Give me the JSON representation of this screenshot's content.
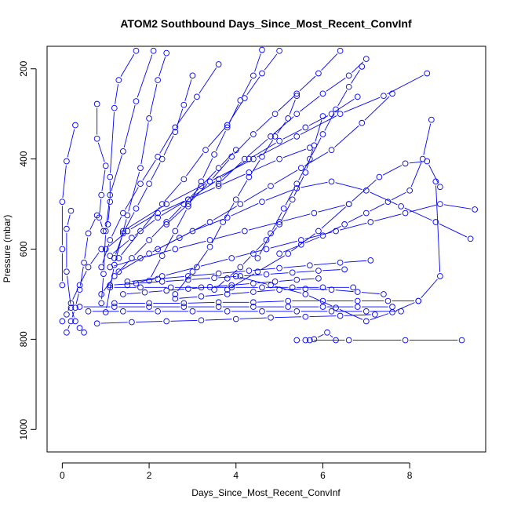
{
  "chart_data": {
    "type": "line",
    "title": "ATOM2 Southbound Days_Since_Most_Recent_ConvInf",
    "xlabel": "Days_Since_Most_Recent_ConvInf",
    "ylabel": "Pressure (mbar)",
    "xlim": [
      -0.35,
      9.75
    ],
    "ylim": [
      1050,
      150
    ],
    "y_inverted": true,
    "x_ticks": [
      0,
      2,
      4,
      6,
      8
    ],
    "y_ticks": [
      200,
      400,
      600,
      800,
      1000
    ],
    "color": "#0000ff",
    "marker": "open-circle",
    "series": [
      {
        "x": [
          0.3,
          0.1,
          0.0,
          0.0,
          0.0
        ],
        "y": [
          325,
          405,
          495,
          600,
          680
        ]
      },
      {
        "x": [
          0.8,
          0.8,
          1.0,
          0.9,
          0.85,
          0.95
        ],
        "y": [
          278,
          355,
          415,
          480,
          530,
          560
        ]
      },
      {
        "x": [
          1.7,
          1.3,
          1.2,
          1.1,
          1.1,
          1.05
        ],
        "y": [
          160,
          225,
          287,
          440,
          495,
          545
        ]
      },
      {
        "x": [
          2.1,
          1.7,
          1.4,
          1.1,
          1.0,
          0.95,
          0.9
        ],
        "y": [
          160,
          272,
          383,
          480,
          560,
          655,
          720
        ]
      },
      {
        "x": [
          2.4,
          2.2,
          2.0,
          1.8,
          1.5,
          1.2,
          1.0
        ],
        "y": [
          165,
          225,
          310,
          420,
          525,
          635,
          740
        ]
      },
      {
        "x": [
          3.6,
          3.1,
          2.6,
          2.2,
          1.8,
          1.4,
          1.1,
          0.9
        ],
        "y": [
          190,
          262,
          330,
          395,
          455,
          520,
          580,
          640
        ]
      },
      {
        "x": [
          5.0,
          4.6,
          4.2,
          3.8,
          3.3,
          2.8,
          2.3,
          1.8,
          1.3
        ],
        "y": [
          160,
          210,
          265,
          325,
          380,
          445,
          500,
          560,
          620
        ]
      },
      {
        "x": [
          6.8,
          6.2,
          5.6,
          5.0,
          4.3,
          3.6,
          2.9,
          2.2,
          1.6,
          1.1
        ],
        "y": [
          262,
          300,
          330,
          360,
          400,
          445,
          490,
          530,
          575,
          615
        ]
      },
      {
        "x": [
          7.6,
          6.9,
          6.2,
          5.5,
          4.8,
          4.1,
          3.4,
          2.7,
          2.0,
          1.3
        ],
        "y": [
          255,
          320,
          380,
          420,
          460,
          500,
          540,
          575,
          610,
          650
        ]
      },
      {
        "x": [
          9.4,
          8.6,
          7.8,
          7.0,
          6.2,
          5.4,
          4.6,
          3.8,
          3.0,
          2.2
        ],
        "y": [
          577,
          540,
          505,
          470,
          450,
          465,
          495,
          530,
          560,
          600
        ]
      },
      {
        "x": [
          9.5,
          8.7,
          7.9,
          7.1,
          6.3,
          5.5,
          4.7,
          3.9,
          3.1,
          2.3,
          1.5
        ],
        "y": [
          512,
          500,
          520,
          540,
          560,
          580,
          600,
          620,
          640,
          660,
          680
        ]
      },
      {
        "x": [
          8.5,
          8.3,
          8.0,
          7.5,
          7.0,
          6.5,
          6.0,
          5.5,
          5.0
        ],
        "y": [
          313,
          400,
          470,
          495,
          520,
          545,
          570,
          590,
          610
        ]
      },
      {
        "x": [
          8.7,
          8.4,
          7.9,
          7.3,
          6.6,
          5.9,
          5.2,
          4.5,
          3.8
        ],
        "y": [
          462,
          405,
          410,
          440,
          500,
          560,
          610,
          650,
          690
        ]
      },
      {
        "x": [
          8.6,
          8.7,
          8.2,
          7.6,
          7.0,
          6.3,
          5.6,
          4.8,
          4.0
        ],
        "y": [
          450,
          660,
          715,
          740,
          760,
          730,
          700,
          680,
          660
        ]
      },
      {
        "x": [
          6.4,
          5.9,
          5.4,
          4.9,
          4.4,
          3.9,
          3.4,
          2.9,
          2.4
        ],
        "y": [
          160,
          210,
          255,
          300,
          345,
          395,
          450,
          500,
          545
        ]
      },
      {
        "x": [
          7.0,
          6.6,
          6.0,
          5.4,
          4.8,
          4.2,
          3.6
        ],
        "y": [
          178,
          215,
          255,
          300,
          350,
          400,
          455
        ]
      },
      {
        "x": [
          4.6,
          4.4,
          4.1,
          3.8,
          3.5,
          3.2,
          2.9,
          2.6,
          2.3,
          2.0
        ],
        "y": [
          158,
          215,
          270,
          330,
          390,
          450,
          505,
          560,
          615,
          670
        ]
      },
      {
        "x": [
          5.4,
          5.2,
          4.9,
          4.6,
          4.3,
          4.0,
          3.7,
          3.4,
          3.0,
          2.6
        ],
        "y": [
          260,
          310,
          350,
          395,
          440,
          490,
          540,
          595,
          650,
          700
        ]
      },
      {
        "x": [
          3.0,
          2.8,
          2.6,
          2.3,
          2.0,
          1.7,
          1.4,
          1.2
        ],
        "y": [
          215,
          280,
          340,
          400,
          455,
          510,
          565,
          620
        ]
      },
      {
        "x": [
          6.0,
          5.8,
          5.6,
          5.3,
          5.0,
          4.7,
          4.4,
          4.1,
          3.8,
          3.5
        ],
        "y": [
          305,
          370,
          430,
          490,
          545,
          580,
          610,
          640,
          665,
          690
        ]
      },
      {
        "x": [
          6.9,
          6.6,
          6.3,
          6.0,
          5.7,
          5.4,
          5.1,
          4.8,
          4.5
        ],
        "y": [
          195,
          240,
          290,
          345,
          400,
          455,
          510,
          565,
          620
        ]
      },
      {
        "x": [
          0.9,
          0.6,
          0.4,
          0.2,
          0.1,
          0.0
        ],
        "y": [
          600,
          640,
          680,
          720,
          745,
          760
        ]
      },
      {
        "x": [
          0.2,
          0.1,
          0.1,
          0.2,
          0.3,
          0.4,
          0.5
        ],
        "y": [
          515,
          555,
          650,
          730,
          760,
          775,
          785
        ]
      },
      {
        "x": [
          0.8,
          0.6,
          0.5,
          0.4,
          0.3,
          0.2,
          0.1
        ],
        "y": [
          525,
          565,
          630,
          690,
          730,
          760,
          785
        ]
      },
      {
        "x": [
          8.2,
          7.5,
          6.8,
          6.0,
          5.2,
          4.4,
          3.6,
          2.8,
          2.0,
          1.2
        ],
        "y": [
          715,
          715,
          715,
          715,
          715,
          718,
          718,
          720,
          720,
          720
        ]
      },
      {
        "x": [
          7.8,
          7.0,
          6.2,
          5.4,
          4.6,
          3.8,
          3.0,
          2.2,
          1.4,
          0.6
        ],
        "y": [
          738,
          738,
          738,
          738,
          738,
          738,
          738,
          738,
          738,
          738
        ]
      },
      {
        "x": [
          7.6,
          6.8,
          6.0,
          5.2,
          4.4,
          3.6,
          2.8,
          2.0,
          1.2,
          0.4
        ],
        "y": [
          728,
          728,
          728,
          728,
          728,
          728,
          728,
          728,
          728,
          728
        ]
      },
      {
        "x": [
          6.7,
          6.0,
          5.3,
          4.6,
          3.9,
          3.2,
          2.5,
          1.8,
          1.1
        ],
        "y": [
          685,
          685,
          685,
          685,
          685,
          685,
          685,
          685,
          685
        ]
      },
      {
        "x": [
          7.2,
          6.4,
          5.6,
          4.8,
          4.0,
          3.2,
          2.4,
          1.6,
          0.8
        ],
        "y": [
          745,
          748,
          750,
          752,
          755,
          758,
          760,
          762,
          765
        ]
      },
      {
        "x": [
          9.2,
          7.9,
          6.6,
          5.7,
          5.6,
          5.4
        ],
        "y": [
          802,
          802,
          802,
          802,
          802,
          802
        ]
      },
      {
        "x": [
          6.3,
          6.1,
          5.8
        ],
        "y": [
          802,
          785,
          800
        ]
      },
      {
        "x": [
          7.4,
          6.8,
          6.2,
          5.6,
          5.0,
          4.4,
          3.8,
          3.2,
          2.6
        ],
        "y": [
          700,
          695,
          690,
          688,
          690,
          695,
          700,
          705,
          710
        ]
      },
      {
        "x": [
          6.5,
          5.9,
          5.3,
          4.7,
          4.1,
          3.5,
          2.9,
          2.3,
          1.7,
          1.1
        ],
        "y": [
          645,
          648,
          652,
          656,
          660,
          664,
          668,
          672,
          676,
          680
        ]
      },
      {
        "x": [
          5.9,
          5.4,
          4.9,
          4.4,
          3.9,
          3.4,
          2.9,
          2.4,
          1.9,
          1.4
        ],
        "y": [
          665,
          668,
          672,
          676,
          680,
          684,
          688,
          692,
          696,
          700
        ]
      },
      {
        "x": [
          7.1,
          6.4,
          5.7,
          5.0,
          4.3,
          3.6,
          2.9,
          2.2,
          1.5
        ],
        "y": [
          625,
          630,
          636,
          642,
          648,
          654,
          660,
          666,
          672
        ]
      },
      {
        "x": [
          8.4,
          7.4,
          6.4,
          5.4,
          4.4,
          3.4,
          2.4,
          1.4
        ],
        "y": [
          210,
          260,
          300,
          350,
          400,
          450,
          500,
          560
        ]
      },
      {
        "x": [
          4.0,
          3.6,
          3.2,
          2.8,
          2.4,
          2.0,
          1.6,
          1.2,
          0.9
        ],
        "y": [
          380,
          420,
          460,
          500,
          540,
          580,
          620,
          660,
          700
        ]
      },
      {
        "x": [
          5.7,
          5.0,
          4.3,
          3.6,
          2.9,
          2.2,
          1.5,
          1.0
        ],
        "y": [
          375,
          400,
          430,
          460,
          490,
          520,
          560,
          600
        ]
      },
      {
        "x": [
          6.6,
          5.8,
          5.0,
          4.2,
          3.4,
          2.6,
          1.8,
          1.1
        ],
        "y": [
          500,
          520,
          540,
          560,
          580,
          600,
          620,
          640
        ]
      }
    ]
  }
}
